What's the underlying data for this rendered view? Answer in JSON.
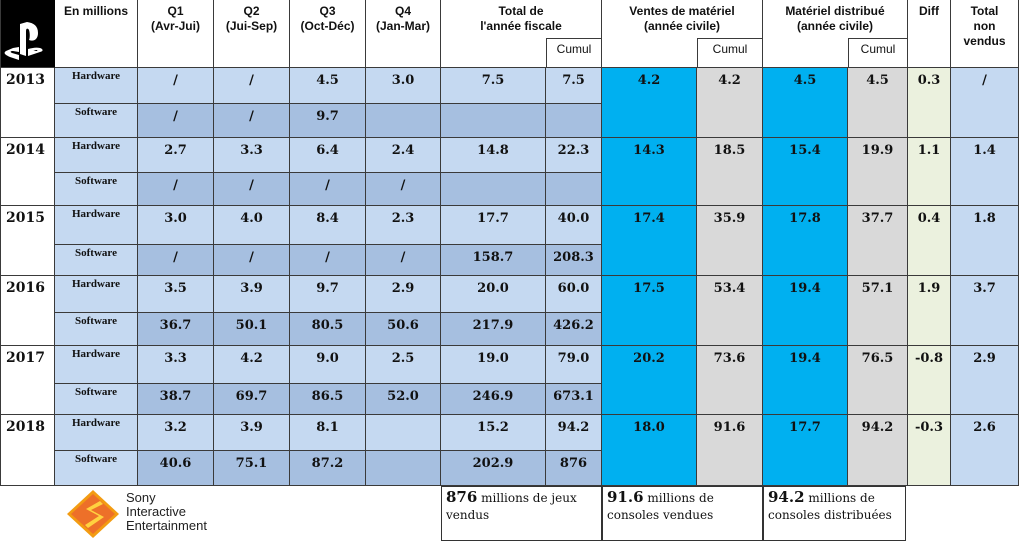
{
  "colors": {
    "blue_light": "#c5d9f1",
    "blue_mid": "#a6bfe0",
    "cyan": "#00b0f0",
    "grey": "#d9d9d9",
    "green": "#ebf1de",
    "white": "#ffffff"
  },
  "header": {
    "corner": "En millions",
    "logo": "playstation-logo",
    "cols": [
      {
        "key": "q1",
        "line1": "Q1",
        "line2": "(Avr-Jui)"
      },
      {
        "key": "q2",
        "line1": "Q2",
        "line2": "(Jui-Sep)"
      },
      {
        "key": "q3",
        "line1": "Q3",
        "line2": "(Oct-Déc)"
      },
      {
        "key": "q4",
        "line1": "Q4",
        "line2": "(Jan-Mar)"
      },
      {
        "key": "total",
        "line1": "Total de",
        "line2": "l'année fiscale"
      },
      {
        "key": "ventes",
        "line1": "Ventes de matériel",
        "line2": "(année civile)"
      },
      {
        "key": "distrib",
        "line1": "Matériel distribué",
        "line2": "(année civile)"
      },
      {
        "key": "diff",
        "line1": "Diff",
        "line2": ""
      },
      {
        "key": "nonvendus",
        "line1": "Total",
        "line2": "non",
        "line3": "vendus"
      }
    ],
    "cumul": "Cumul"
  },
  "years": [
    {
      "year": "2013",
      "hardware": {
        "label": "Hardware",
        "q1": "/",
        "q2": "/",
        "q3": "4.5",
        "q4": "3.0",
        "total": "7.5",
        "cumul": "7.5"
      },
      "software": {
        "label": "Software",
        "q1": "/",
        "q2": "/",
        "q3": "9.7",
        "q4": "",
        "total": "",
        "cumul": ""
      },
      "ventes": "4.2",
      "ventes_cumul": "4.2",
      "distrib": "4.5",
      "distrib_cumul": "4.5",
      "diff": "0.3",
      "nonvendus": "/"
    },
    {
      "year": "2014",
      "hardware": {
        "label": "Hardware",
        "q1": "2.7",
        "q2": "3.3",
        "q3": "6.4",
        "q4": "2.4",
        "total": "14.8",
        "cumul": "22.3"
      },
      "software": {
        "label": "Software",
        "q1": "/",
        "q2": "/",
        "q3": "/",
        "q4": "/",
        "total": "",
        "cumul": ""
      },
      "ventes": "14.3",
      "ventes_cumul": "18.5",
      "distrib": "15.4",
      "distrib_cumul": "19.9",
      "diff": "1.1",
      "nonvendus": "1.4"
    },
    {
      "year": "2015",
      "hardware": {
        "label": "Hardware",
        "q1": "3.0",
        "q2": "4.0",
        "q3": "8.4",
        "q4": "2.3",
        "total": "17.7",
        "cumul": "40.0"
      },
      "software": {
        "label": "Software",
        "q1": "/",
        "q2": "/",
        "q3": "/",
        "q4": "/",
        "total": "158.7",
        "cumul": "208.3"
      },
      "ventes": "17.4",
      "ventes_cumul": "35.9",
      "distrib": "17.8",
      "distrib_cumul": "37.7",
      "diff": "0.4",
      "nonvendus": "1.8"
    },
    {
      "year": "2016",
      "hardware": {
        "label": "Hardware",
        "q1": "3.5",
        "q2": "3.9",
        "q3": "9.7",
        "q4": "2.9",
        "total": "20.0",
        "cumul": "60.0"
      },
      "software": {
        "label": "Software",
        "q1": "36.7",
        "q2": "50.1",
        "q3": "80.5",
        "q4": "50.6",
        "total": "217.9",
        "cumul": "426.2"
      },
      "ventes": "17.5",
      "ventes_cumul": "53.4",
      "distrib": "19.4",
      "distrib_cumul": "57.1",
      "diff": "1.9",
      "nonvendus": "3.7"
    },
    {
      "year": "2017",
      "hardware": {
        "label": "Hardware",
        "q1": "3.3",
        "q2": "4.2",
        "q3": "9.0",
        "q4": "2.5",
        "total": "19.0",
        "cumul": "79.0"
      },
      "software": {
        "label": "Software",
        "q1": "38.7",
        "q2": "69.7",
        "q3": "86.5",
        "q4": "52.0",
        "total": "246.9",
        "cumul": "673.1"
      },
      "ventes": "20.2",
      "ventes_cumul": "73.6",
      "distrib": "19.4",
      "distrib_cumul": "76.5",
      "diff": "-0.8",
      "nonvendus": "2.9"
    },
    {
      "year": "2018",
      "hardware": {
        "label": "Hardware",
        "q1": "3.2",
        "q2": "3.9",
        "q3": "8.1",
        "q4": "",
        "total": "15.2",
        "cumul": "94.2"
      },
      "software": {
        "label": "Software",
        "q1": "40.6",
        "q2": "75.1",
        "q3": "87.2",
        "q4": "",
        "total": "202.9",
        "cumul": "876"
      },
      "ventes": "18.0",
      "ventes_cumul": "91.6",
      "distrib": "17.7",
      "distrib_cumul": "94.2",
      "diff": "-0.3",
      "nonvendus": "2.6"
    }
  ],
  "footer": {
    "logo_line1": "Sony",
    "logo_line2": "Interactive",
    "logo_line3": "Entertainment",
    "logo_icon": "sony-interactive-entertainment-logo",
    "games_value": "876",
    "games_text": "millions de jeux vendus",
    "sold_value": "91.6",
    "sold_text": "millions de consoles vendues",
    "distributed_value": "94.2",
    "distributed_text": "millions de consoles distribuées"
  }
}
